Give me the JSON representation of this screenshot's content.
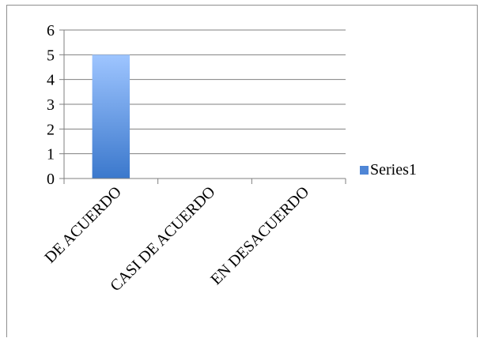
{
  "chart_data": {
    "type": "bar",
    "categories": [
      "DE ACUERDO",
      "CASI DE ACUERDO",
      "EN DESACUERDO"
    ],
    "series": [
      {
        "name": "Series1",
        "values": [
          5,
          0,
          0
        ]
      }
    ],
    "ylim": [
      0,
      6
    ],
    "yticks": [
      "0",
      "1",
      "2",
      "3",
      "4",
      "5",
      "6"
    ],
    "grid": true,
    "legend_position": "right",
    "colors": {
      "bar_top": "#9ec5ff",
      "bar_bottom": "#3b78cc",
      "legend_swatch": "#4f86d6",
      "gridline": "#7f7f7f",
      "axis": "#7f7f7f",
      "frame": "#8f8f8f"
    }
  }
}
